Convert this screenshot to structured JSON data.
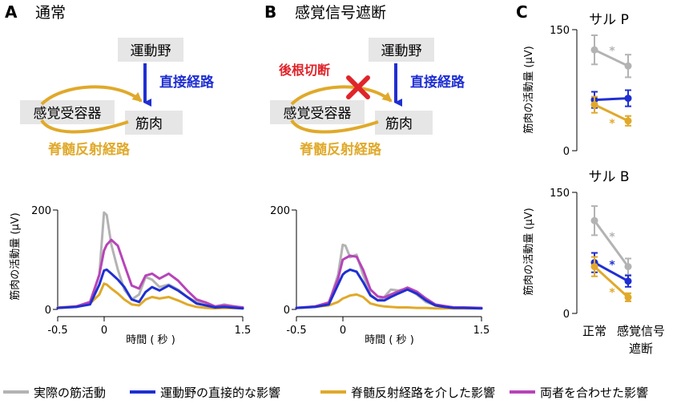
{
  "panels": {
    "A": {
      "letter": "A",
      "title": "通常",
      "boxes": {
        "motor": "運動野",
        "receptor": "感覚受容器",
        "muscle": "筋肉"
      },
      "paths": {
        "direct": "直接経路",
        "spinal": "脊髄反射経路"
      },
      "plot": {
        "y_tick_top": "200",
        "y_tick_bottom": "0",
        "x_ticks": [
          "-0.5",
          "0",
          "1.5"
        ],
        "xlabel": "時間 ( 秒 )",
        "ylabel": "筋肉の活動量 (μV)"
      }
    },
    "B": {
      "letter": "B",
      "title": "感覚信号遮断",
      "boxes": {
        "motor": "運動野",
        "receptor": "感覚受容器",
        "muscle": "筋肉"
      },
      "paths": {
        "direct": "直接経路",
        "spinal": "脊髄反射経路",
        "cut": "後根切断"
      },
      "plot": {
        "y_tick_top": "200",
        "y_tick_bottom": "0",
        "x_ticks": [
          "-0.5",
          "0",
          "1.5"
        ],
        "xlabel": "時間 ( 秒 )"
      }
    },
    "C": {
      "letter": "C",
      "monkeyP": {
        "title": "サル P",
        "y_tick_top": "150",
        "y_tick_bottom": "0",
        "ylabel": "筋肉の活動量 (μV)"
      },
      "monkeyB": {
        "title": "サル B",
        "y_tick_top": "150",
        "y_tick_bottom": "0",
        "ylabel": "筋肉の活動量 (μV)"
      },
      "x_labels": {
        "normal": "正常",
        "blocked_line1": "感覚信号",
        "blocked_line2": "遮断"
      },
      "star": "*"
    }
  },
  "legend": [
    {
      "label": "実際の筋活動",
      "color": "#b3b3b3"
    },
    {
      "label": "運動野の直接的な影響",
      "color": "#1f2fd1"
    },
    {
      "label": "脊髄反射経路を介した影響",
      "color": "#e0a92a"
    },
    {
      "label": "両者を合わせた影響",
      "color": "#b744b8"
    }
  ],
  "colors": {
    "gray": "#b3b3b3",
    "blue": "#1f2fd1",
    "yellow": "#e0a92a",
    "purple": "#b744b8",
    "red": "#e0242a",
    "box": "#e6e6e6"
  },
  "chart_data": [
    {
      "type": "line",
      "title": "A 通常",
      "xlabel": "時間 ( 秒 )",
      "ylabel": "筋肉の活動量 (μV)",
      "xlim": [
        -0.5,
        1.5
      ],
      "ylim": [
        0,
        200
      ],
      "x": [
        -0.5,
        -0.3,
        -0.15,
        -0.05,
        0.0,
        0.03,
        0.08,
        0.15,
        0.22,
        0.3,
        0.38,
        0.45,
        0.52,
        0.6,
        0.7,
        0.8,
        0.9,
        1.0,
        1.1,
        1.2,
        1.3,
        1.5
      ],
      "series": [
        {
          "name": "実際の筋活動",
          "values": [
            3,
            5,
            12,
            70,
            195,
            190,
            130,
            80,
            40,
            20,
            30,
            65,
            60,
            45,
            50,
            40,
            25,
            15,
            12,
            6,
            10,
            3
          ]
        },
        {
          "name": "運動野の直接的な影響",
          "values": [
            3,
            5,
            10,
            50,
            78,
            80,
            72,
            60,
            45,
            20,
            15,
            35,
            45,
            38,
            48,
            38,
            25,
            12,
            8,
            4,
            5,
            2
          ]
        },
        {
          "name": "脊髄反射経路を介した影響",
          "values": [
            4,
            6,
            12,
            30,
            52,
            50,
            42,
            32,
            20,
            10,
            8,
            20,
            25,
            22,
            25,
            18,
            10,
            5,
            3,
            2,
            3,
            2
          ]
        },
        {
          "name": "両者を合わせた影響",
          "values": [
            3,
            6,
            15,
            70,
            118,
            130,
            140,
            128,
            90,
            48,
            42,
            68,
            72,
            62,
            72,
            58,
            38,
            20,
            14,
            6,
            8,
            4
          ]
        }
      ]
    },
    {
      "type": "line",
      "title": "B 感覚信号遮断",
      "xlabel": "時間 ( 秒 )",
      "xlim": [
        -0.5,
        1.5
      ],
      "ylim": [
        0,
        200
      ],
      "x": [
        -0.5,
        -0.3,
        -0.15,
        -0.05,
        0.0,
        0.03,
        0.08,
        0.15,
        0.22,
        0.3,
        0.38,
        0.45,
        0.52,
        0.6,
        0.7,
        0.8,
        0.9,
        1.0,
        1.1,
        1.2,
        1.3,
        1.5
      ],
      "series": [
        {
          "name": "実際の筋活動",
          "values": [
            3,
            5,
            12,
            70,
            130,
            128,
            105,
            110,
            70,
            30,
            18,
            25,
            40,
            38,
            42,
            30,
            15,
            8,
            5,
            4,
            4,
            3
          ]
        },
        {
          "name": "運動野の直接的な影響",
          "values": [
            3,
            5,
            10,
            50,
            70,
            75,
            80,
            76,
            55,
            28,
            18,
            18,
            25,
            32,
            40,
            32,
            18,
            8,
            5,
            3,
            3,
            2
          ]
        },
        {
          "name": "脊髄反射経路を介した影響",
          "values": [
            3,
            5,
            8,
            15,
            22,
            24,
            28,
            30,
            25,
            12,
            8,
            6,
            5,
            4,
            4,
            3,
            3,
            2,
            2,
            2,
            2,
            2
          ]
        },
        {
          "name": "両者を合わせた影響",
          "values": [
            3,
            6,
            14,
            62,
            100,
            103,
            108,
            106,
            80,
            40,
            26,
            24,
            30,
            36,
            44,
            36,
            22,
            10,
            7,
            4,
            4,
            3
          ]
        }
      ]
    },
    {
      "type": "line",
      "title": "C サル P",
      "ylabel": "筋肉の活動量 (μV)",
      "categories": [
        "正常",
        "感覚信号遮断"
      ],
      "ylim": [
        0,
        150
      ],
      "series": [
        {
          "name": "実際の筋活動",
          "values": [
            125,
            105
          ],
          "errors": [
            18,
            14
          ],
          "marker": "*"
        },
        {
          "name": "運動野の直接的な影響",
          "values": [
            63,
            65
          ],
          "errors": [
            10,
            10
          ]
        },
        {
          "name": "脊髄反射経路を介した影響",
          "values": [
            57,
            37
          ],
          "errors": [
            10,
            6
          ],
          "marker": "*"
        }
      ]
    },
    {
      "type": "line",
      "title": "C サル B",
      "ylabel": "筋肉の活動量 (μV)",
      "categories": [
        "正常",
        "感覚信号遮断"
      ],
      "ylim": [
        0,
        150
      ],
      "series": [
        {
          "name": "実際の筋活動",
          "values": [
            115,
            58
          ],
          "errors": [
            18,
            10
          ],
          "marker": "*"
        },
        {
          "name": "運動野の直接的な影響",
          "values": [
            63,
            40
          ],
          "errors": [
            12,
            7
          ],
          "marker": "*"
        },
        {
          "name": "脊髄反射経路を介した影響",
          "values": [
            58,
            20
          ],
          "errors": [
            12,
            5
          ],
          "marker": "*"
        }
      ]
    }
  ]
}
